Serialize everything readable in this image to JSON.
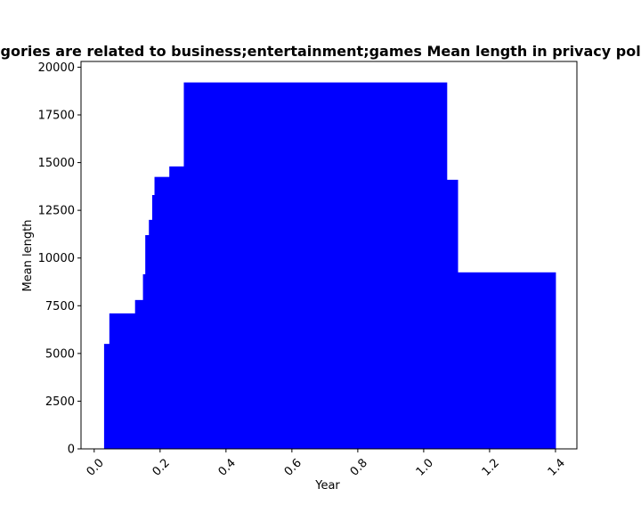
{
  "chart_data": {
    "type": "area",
    "title": "Categories are related to business;entertainment;games Mean length in privacy policies",
    "xlabel": "Year",
    "ylabel": "Mean length",
    "xlim": [
      -0.04,
      1.465
    ],
    "ylim": [
      0,
      20300
    ],
    "xticks": [
      0.0,
      0.2,
      0.4,
      0.6,
      0.8,
      1.0,
      1.2,
      1.4
    ],
    "xtick_labels": [
      "0.0",
      "0.2",
      "0.4",
      "0.6",
      "0.8",
      "1.0",
      "1.2",
      "1.4"
    ],
    "yticks": [
      0,
      2500,
      5000,
      7500,
      10000,
      12500,
      15000,
      17500,
      20000
    ],
    "ytick_labels": [
      "0",
      "2500",
      "5000",
      "7500",
      "10000",
      "12500",
      "15000",
      "17500",
      "20000"
    ],
    "grid": false,
    "color": "#0000ff",
    "steps": [
      {
        "x0": 0.03,
        "x1": 0.046,
        "y": 5500
      },
      {
        "x0": 0.046,
        "x1": 0.124,
        "y": 7100
      },
      {
        "x0": 0.124,
        "x1": 0.148,
        "y": 7800
      },
      {
        "x0": 0.148,
        "x1": 0.155,
        "y": 9150
      },
      {
        "x0": 0.155,
        "x1": 0.166,
        "y": 11200
      },
      {
        "x0": 0.166,
        "x1": 0.176,
        "y": 12000
      },
      {
        "x0": 0.176,
        "x1": 0.183,
        "y": 13300
      },
      {
        "x0": 0.183,
        "x1": 0.228,
        "y": 14250
      },
      {
        "x0": 0.228,
        "x1": 0.272,
        "y": 14800
      },
      {
        "x0": 0.272,
        "x1": 1.07,
        "y": 19200
      },
      {
        "x0": 1.07,
        "x1": 1.103,
        "y": 14100
      },
      {
        "x0": 1.103,
        "x1": 1.4,
        "y": 9250
      }
    ]
  }
}
